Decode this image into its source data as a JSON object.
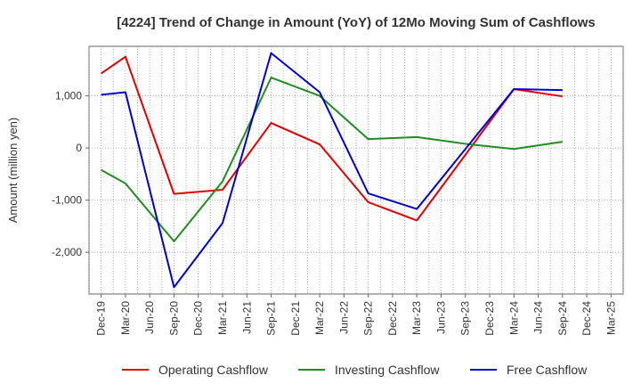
{
  "chart_data": {
    "type": "line",
    "title": "[4224]  Trend of Change in Amount (YoY) of 12Mo Moving Sum of Cashflows",
    "xlabel": "",
    "ylabel": "Amount (million yen)",
    "categories": [
      "Dec-19",
      "Mar-20",
      "Jun-20",
      "Sep-20",
      "Dec-20",
      "Mar-21",
      "Jun-21",
      "Sep-21",
      "Dec-21",
      "Mar-22",
      "Jun-22",
      "Sep-22",
      "Dec-22",
      "Mar-23",
      "Jun-23",
      "Sep-23",
      "Dec-23",
      "Mar-24",
      "Jun-24",
      "Sep-24",
      "Dec-24",
      "Mar-25"
    ],
    "y_ticks": [
      1000,
      0,
      -1000,
      -2000
    ],
    "y_tick_labels": [
      "1,000",
      "0",
      "-1,000",
      "-2,000"
    ],
    "ylim": [
      -2800,
      1950
    ],
    "grid": true,
    "legend_position": "bottom",
    "series": [
      {
        "name": "Operating Cashflow",
        "color": "#e00000",
        "points": [
          {
            "x": "Dec-19",
            "y": 1430
          },
          {
            "x": "Mar-20",
            "y": 1750
          },
          {
            "x": "Sep-20",
            "y": -880
          },
          {
            "x": "Mar-21",
            "y": -800
          },
          {
            "x": "Sep-21",
            "y": 480
          },
          {
            "x": "Mar-22",
            "y": 70
          },
          {
            "x": "Sep-22",
            "y": -1040
          },
          {
            "x": "Mar-23",
            "y": -1390
          },
          {
            "x": "Mar-24",
            "y": 1130
          },
          {
            "x": "Sep-24",
            "y": 990
          }
        ]
      },
      {
        "name": "Investing Cashflow",
        "color": "#228b22",
        "points": [
          {
            "x": "Dec-19",
            "y": -420
          },
          {
            "x": "Mar-20",
            "y": -680
          },
          {
            "x": "Sep-20",
            "y": -1790
          },
          {
            "x": "Mar-21",
            "y": -640
          },
          {
            "x": "Sep-21",
            "y": 1350
          },
          {
            "x": "Mar-22",
            "y": 1000
          },
          {
            "x": "Sep-22",
            "y": 170
          },
          {
            "x": "Mar-23",
            "y": 210
          },
          {
            "x": "Sep-23",
            "y": 80
          },
          {
            "x": "Dec-23",
            "y": 30
          },
          {
            "x": "Mar-24",
            "y": -20
          },
          {
            "x": "Sep-24",
            "y": 120
          }
        ]
      },
      {
        "name": "Free Cashflow",
        "color": "#0000cc",
        "points": [
          {
            "x": "Dec-19",
            "y": 1020
          },
          {
            "x": "Mar-20",
            "y": 1070
          },
          {
            "x": "Sep-20",
            "y": -2670
          },
          {
            "x": "Mar-21",
            "y": -1440
          },
          {
            "x": "Sep-21",
            "y": 1820
          },
          {
            "x": "Mar-22",
            "y": 1070
          },
          {
            "x": "Sep-22",
            "y": -870
          },
          {
            "x": "Mar-23",
            "y": -1170
          },
          {
            "x": "Mar-24",
            "y": 1130
          },
          {
            "x": "Sep-24",
            "y": 1110
          }
        ]
      }
    ]
  }
}
